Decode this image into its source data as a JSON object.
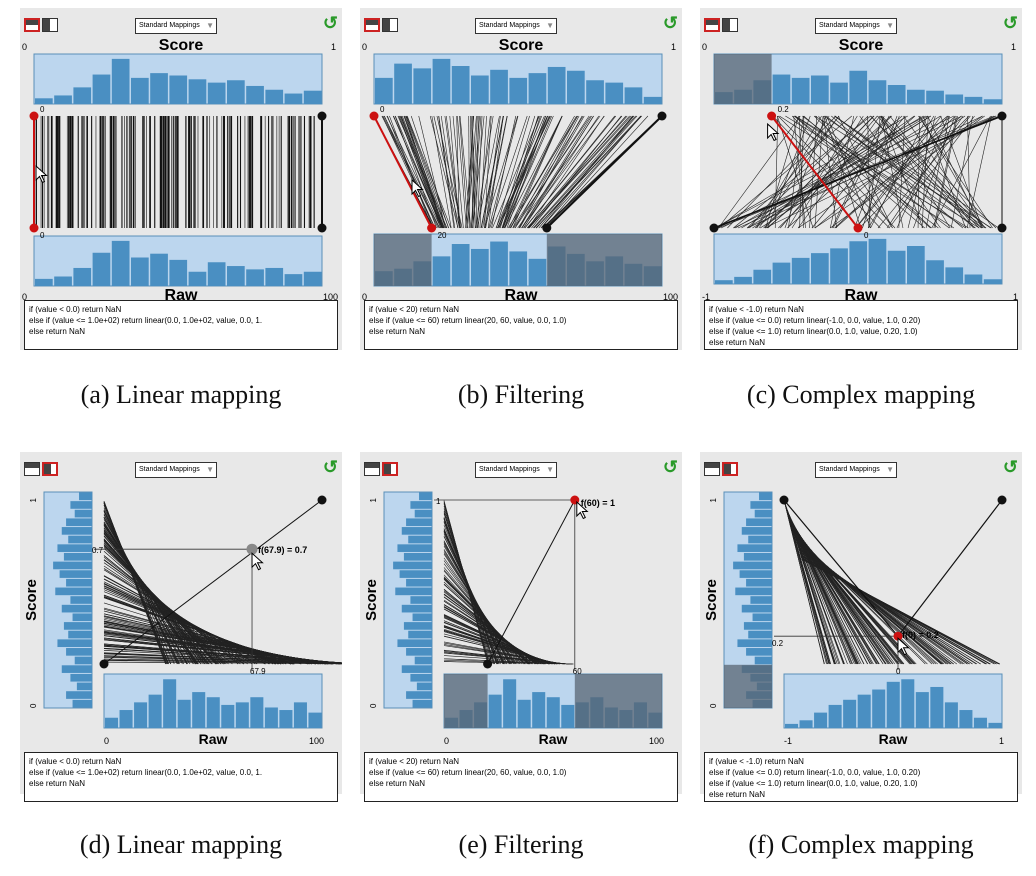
{
  "ui": {
    "dropdown_label": "Standard Mappings",
    "dropdown_arrow_icon": "chevron-down-icon",
    "refresh_icon": "refresh-icon",
    "colors": {
      "histogram_fill": "#bcd6ee",
      "bar": "#4a8fc2",
      "shade": "#5a6573",
      "control_point": "#cc1111",
      "panel_bg": "#e8e8e8"
    }
  },
  "panels": [
    {
      "id": "a",
      "caption": "(a)  Linear mapping",
      "score_label": "Score",
      "raw_label": "Raw",
      "score_min": "0",
      "score_max": "1",
      "raw_min": "0",
      "raw_max": "100",
      "point_labels": [
        "0",
        "0"
      ],
      "code": [
        "if (value < 0.0) return NaN",
        "else if (value <= 1.0e+02) return linear(0.0, 1.0e+02, value, 0.0, 1.",
        "else return NaN"
      ]
    },
    {
      "id": "b",
      "caption": "(b)  Filtering",
      "score_label": "Score",
      "raw_label": "Raw",
      "score_min": "0",
      "score_max": "1",
      "raw_min": "0",
      "raw_max": "100",
      "point_labels": [
        "0",
        "20"
      ],
      "code": [
        "if (value < 20) return NaN",
        "else if (value <= 60) return linear(20, 60, value, 0.0, 1.0)",
        "else return NaN"
      ]
    },
    {
      "id": "c",
      "caption": "(c)  Complex mapping",
      "score_label": "Score",
      "raw_label": "Raw",
      "score_min": "0",
      "score_max": "1",
      "raw_min": "-1",
      "raw_max": "1",
      "point_labels": [
        "0.2",
        "0"
      ],
      "code": [
        "if (value < -1.0) return NaN",
        "else if (value <= 0.0) return linear(-1.0, 0.0, value, 1.0, 0.20)",
        "else if (value <= 1.0) return linear(0.0, 1.0, value, 0.20, 1.0)",
        "else return NaN"
      ]
    },
    {
      "id": "d",
      "caption": "(d)  Linear mapping",
      "score_label": "Score",
      "raw_label": "Raw",
      "score_min": "0",
      "score_max": "1",
      "raw_min": "0",
      "raw_max": "100",
      "point_labels": [
        "0.7",
        "67.9",
        "f(67.9) = 0.7"
      ],
      "code": [
        "if (value < 0.0) return NaN",
        "else if (value <= 1.0e+02) return linear(0.0, 1.0e+02, value, 0.0, 1.",
        "else return NaN"
      ]
    },
    {
      "id": "e",
      "caption": "(e)  Filtering",
      "score_label": "Score",
      "raw_label": "Raw",
      "score_min": "0",
      "score_max": "1",
      "raw_min": "0",
      "raw_max": "100",
      "point_labels": [
        "1",
        "60",
        "f(60) = 1"
      ],
      "code": [
        "if (value < 20) return NaN",
        "else if (value <= 60) return linear(20, 60, value, 0.0, 1.0)",
        "else return NaN"
      ]
    },
    {
      "id": "f",
      "caption": "(f)  Complex mapping",
      "score_label": "Score",
      "raw_label": "Raw",
      "score_min": "0",
      "score_max": "1",
      "raw_min": "-1",
      "raw_max": "1",
      "point_labels": [
        "0.2",
        "0",
        "f(0) = 0.2"
      ],
      "code": [
        "if (value < -1.0) return NaN",
        "else if (value <= 0.0) return linear(-1.0, 0.0, value, 1.0, 0.20)",
        "else if (value <= 1.0) return linear(0.0, 1.0, value, 0.20, 1.0)",
        "else return NaN"
      ]
    }
  ],
  "histograms": {
    "score_a": [
      0.12,
      0.18,
      0.35,
      0.62,
      0.95,
      0.55,
      0.65,
      0.6,
      0.52,
      0.45,
      0.5,
      0.38,
      0.3,
      0.22,
      0.28
    ],
    "raw_a": [
      0.15,
      0.2,
      0.38,
      0.7,
      0.95,
      0.6,
      0.68,
      0.55,
      0.3,
      0.5,
      0.42,
      0.35,
      0.38,
      0.25,
      0.3
    ],
    "score_b": [
      0.55,
      0.85,
      0.75,
      0.95,
      0.8,
      0.6,
      0.72,
      0.55,
      0.65,
      0.78,
      0.7,
      0.5,
      0.45,
      0.35,
      0.15
    ],
    "raw_b": [
      0.3,
      0.35,
      0.5,
      0.6,
      0.85,
      0.75,
      0.9,
      0.7,
      0.55,
      0.8,
      0.65,
      0.5,
      0.6,
      0.45,
      0.4
    ],
    "score_c": [
      0.25,
      0.3,
      0.5,
      0.62,
      0.55,
      0.6,
      0.45,
      0.7,
      0.5,
      0.4,
      0.3,
      0.28,
      0.2,
      0.15,
      0.1
    ],
    "raw_c": [
      0.08,
      0.15,
      0.3,
      0.45,
      0.55,
      0.65,
      0.75,
      0.9,
      0.95,
      0.7,
      0.8,
      0.5,
      0.35,
      0.2,
      0.1
    ],
    "score_side": [
      0.3,
      0.5,
      0.4,
      0.6,
      0.7,
      0.55,
      0.8,
      0.65,
      0.9,
      0.75,
      0.6,
      0.85,
      0.5,
      0.7,
      0.45,
      0.65,
      0.55,
      0.8,
      0.6,
      0.4,
      0.7,
      0.5,
      0.35,
      0.6,
      0.45
    ],
    "raw_bottom": [
      0.2,
      0.35,
      0.5,
      0.65,
      0.95,
      0.55,
      0.7,
      0.6,
      0.45,
      0.5,
      0.6,
      0.4,
      0.35,
      0.5,
      0.3
    ]
  }
}
